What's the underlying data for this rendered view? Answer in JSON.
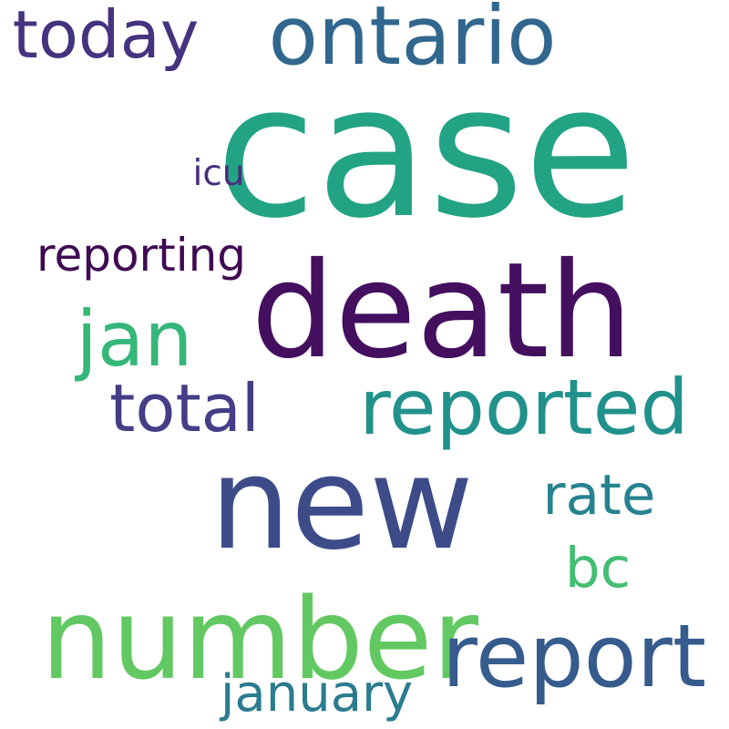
{
  "words": [
    {
      "text": "case",
      "color": "#22a384"
    },
    {
      "text": "death",
      "color": "#440f5f"
    },
    {
      "text": "new",
      "color": "#3d4c89"
    },
    {
      "text": "ontario",
      "color": "#31668e"
    },
    {
      "text": "number",
      "color": "#62c862"
    },
    {
      "text": "report",
      "color": "#365b8d"
    },
    {
      "text": "reported",
      "color": "#21918c"
    },
    {
      "text": "rate",
      "color": "#26828e"
    },
    {
      "text": "total",
      "color": "#433e85"
    },
    {
      "text": "jan",
      "color": "#35b779"
    },
    {
      "text": "bc",
      "color": "#42be71"
    },
    {
      "text": "today",
      "color": "#46337f"
    },
    {
      "text": "reporting",
      "color": "#3f0a52"
    },
    {
      "text": "icu",
      "color": "#472f7d"
    },
    {
      "text": "january",
      "color": "#2b7c8e"
    }
  ]
}
